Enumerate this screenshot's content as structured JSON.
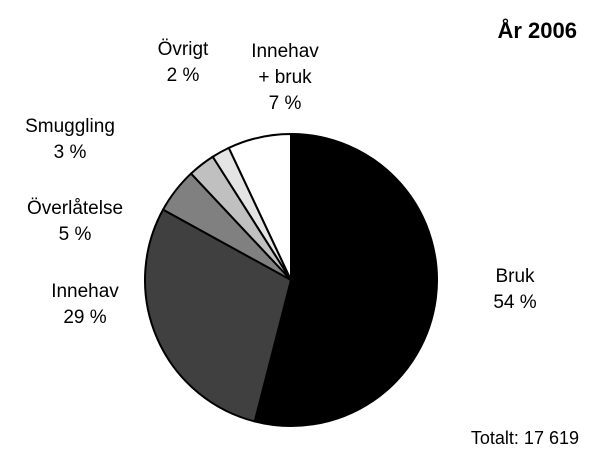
{
  "chart_data": {
    "type": "pie",
    "title": "År 2006",
    "footer": "Totalt: 17 619",
    "categories": [
      "Bruk",
      "Innehav",
      "Överlåtelse",
      "Smuggling",
      "Övrigt",
      "Innehav + bruk"
    ],
    "values": [
      54,
      29,
      5,
      3,
      2,
      7
    ],
    "value_labels": [
      "54 %",
      "29 %",
      "5 %",
      "3 %",
      "2 %",
      "7 %"
    ],
    "colors": [
      "#000000",
      "#404040",
      "#808080",
      "#c0c0c0",
      "#e4e4e4",
      "#ffffff"
    ]
  }
}
